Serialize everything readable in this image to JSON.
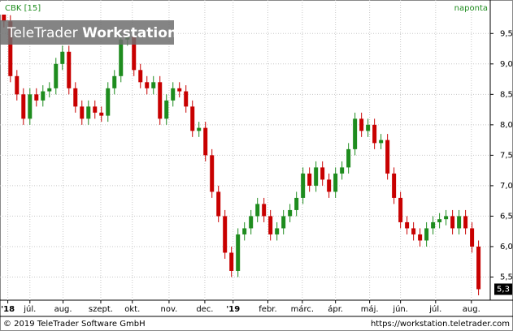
{
  "chart_data": {
    "type": "candlestick",
    "symbol": "CBK [15]",
    "interval": "naponta",
    "watermark": {
      "brand": "TeleTrader",
      "product": "Workstation"
    },
    "footer_left": "© 2019 TeleTrader Software GmbH",
    "footer_right": "https://workstation.teletrader.com",
    "up_color": "#1e8c1e",
    "down_color": "#c80000",
    "grid": true,
    "xlim": [
      -0.6,
      74.8
    ],
    "xticks": [
      {
        "value": 0.6,
        "label": "'18"
      },
      {
        "value": 4,
        "label": "júl."
      },
      {
        "value": 9.1,
        "label": "aug."
      },
      {
        "value": 14.9,
        "label": "szept."
      },
      {
        "value": 19.75,
        "label": "okt."
      },
      {
        "value": 25.4,
        "label": "nov."
      },
      {
        "value": 30.9,
        "label": "dec."
      },
      {
        "value": 35.25,
        "label": "'19"
      },
      {
        "value": 40.6,
        "label": "febr."
      },
      {
        "value": 45.9,
        "label": "márc."
      },
      {
        "value": 51,
        "label": "ápr."
      },
      {
        "value": 56.25,
        "label": "máj."
      },
      {
        "value": 61,
        "label": "jún."
      },
      {
        "value": 66.4,
        "label": "júl."
      },
      {
        "value": 71.9,
        "label": "aug."
      }
    ],
    "ylim": [
      5.12,
      10.05
    ],
    "yticks": [
      {
        "value": 5.5,
        "label": "5,5"
      },
      {
        "value": 6,
        "label": "6,0"
      },
      {
        "value": 6.5,
        "label": "6,5"
      },
      {
        "value": 7,
        "label": "7,0"
      },
      {
        "value": 7.5,
        "label": "7,5"
      },
      {
        "value": 8,
        "label": "8,0"
      },
      {
        "value": 8.5,
        "label": "8,5"
      },
      {
        "value": 9,
        "label": "9,0"
      },
      {
        "value": 9.5,
        "label": "9,5"
      }
    ],
    "last_price": {
      "value": 5.3,
      "label": "5,3"
    },
    "open": [
      9.9,
      9.7,
      8.8,
      8.5,
      8.1,
      8.5,
      8.4,
      8.55,
      8.6,
      9.0,
      9.2,
      8.6,
      8.3,
      8.1,
      8.3,
      8.2,
      8.15,
      8.6,
      8.8,
      9.4,
      9.45,
      8.9,
      8.7,
      8.6,
      8.7,
      8.1,
      8.4,
      8.6,
      8.55,
      8.3,
      7.9,
      7.95,
      7.5,
      6.9,
      6.5,
      5.9,
      5.6,
      6.2,
      6.3,
      6.5,
      6.7,
      6.5,
      6.2,
      6.3,
      6.5,
      6.6,
      6.8,
      7.2,
      7.0,
      7.3,
      7.1,
      6.9,
      7.2,
      7.3,
      7.6,
      8.1,
      7.9,
      8.0,
      7.7,
      7.75,
      7.2,
      6.8,
      6.4,
      6.3,
      6.2,
      6.1,
      6.3,
      6.4,
      6.45,
      6.5,
      6.3,
      6.5,
      6.3,
      6.0
    ],
    "high": [
      10.0,
      9.8,
      8.9,
      8.6,
      8.6,
      8.6,
      8.65,
      8.7,
      9.1,
      9.3,
      9.3,
      8.7,
      8.4,
      8.4,
      8.4,
      8.3,
      8.7,
      8.9,
      9.5,
      9.55,
      9.55,
      9.0,
      8.8,
      8.8,
      8.8,
      8.5,
      8.7,
      8.7,
      8.65,
      8.4,
      8.05,
      8.05,
      7.6,
      7.0,
      6.6,
      6.0,
      6.3,
      6.4,
      6.6,
      6.8,
      6.8,
      6.6,
      6.4,
      6.6,
      6.7,
      6.9,
      7.3,
      7.3,
      7.4,
      7.4,
      7.2,
      7.3,
      7.4,
      7.7,
      8.2,
      8.2,
      8.1,
      8.1,
      7.85,
      7.85,
      7.3,
      6.9,
      6.5,
      6.4,
      6.3,
      6.4,
      6.5,
      6.55,
      6.6,
      6.6,
      6.6,
      6.6,
      6.4,
      6.1
    ],
    "low": [
      9.6,
      8.7,
      8.4,
      8.0,
      8.0,
      8.3,
      8.3,
      8.45,
      8.5,
      8.9,
      8.5,
      8.2,
      8.0,
      8.0,
      8.1,
      8.05,
      8.05,
      8.5,
      8.7,
      9.3,
      8.8,
      8.6,
      8.5,
      8.5,
      8.0,
      8.0,
      8.3,
      8.45,
      8.2,
      7.8,
      7.8,
      7.4,
      6.8,
      6.4,
      5.8,
      5.5,
      5.5,
      6.1,
      6.2,
      6.4,
      6.4,
      6.1,
      6.1,
      6.2,
      6.4,
      6.5,
      6.7,
      6.9,
      6.9,
      7.0,
      6.8,
      6.8,
      7.1,
      7.2,
      7.5,
      7.8,
      7.8,
      7.6,
      7.6,
      7.1,
      6.7,
      6.3,
      6.2,
      6.1,
      6.0,
      6.0,
      6.2,
      6.3,
      6.35,
      6.2,
      6.2,
      6.2,
      5.9,
      5.2
    ],
    "close": [
      9.7,
      8.8,
      8.5,
      8.1,
      8.5,
      8.4,
      8.55,
      8.6,
      9.0,
      9.2,
      8.6,
      8.3,
      8.1,
      8.3,
      8.2,
      8.15,
      8.6,
      8.8,
      9.4,
      9.45,
      8.9,
      8.7,
      8.6,
      8.7,
      8.1,
      8.4,
      8.6,
      8.55,
      8.3,
      7.9,
      7.95,
      7.5,
      6.9,
      6.5,
      5.9,
      5.6,
      6.2,
      6.3,
      6.5,
      6.7,
      6.5,
      6.2,
      6.3,
      6.5,
      6.6,
      6.8,
      7.2,
      7.0,
      7.3,
      7.1,
      6.9,
      7.2,
      7.3,
      7.6,
      8.1,
      7.9,
      8.0,
      7.7,
      7.75,
      7.2,
      6.8,
      6.4,
      6.3,
      6.2,
      6.1,
      6.3,
      6.4,
      6.45,
      6.5,
      6.3,
      6.5,
      6.3,
      6.0,
      5.3
    ]
  }
}
